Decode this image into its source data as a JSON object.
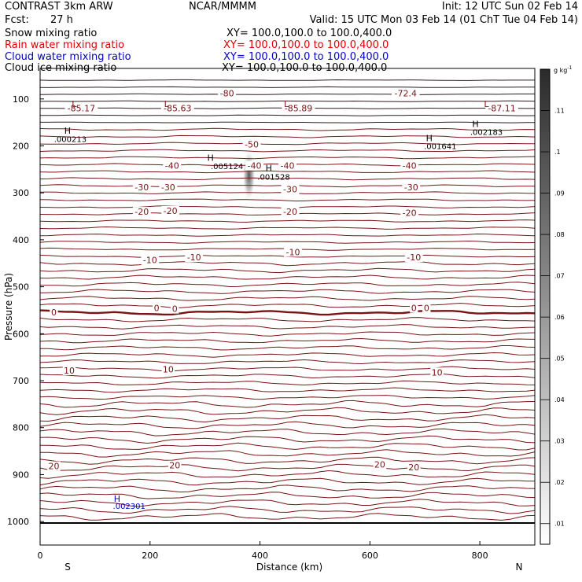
{
  "header": {
    "model": "CONTRAST  3km ARW",
    "org": "NCAR/MMMM",
    "init": "Init: 12 UTC Sun 02 Feb 14",
    "fcst_label": "Fcst:",
    "fcst_value": "27 h",
    "valid": "Valid: 15 UTC Mon 03 Feb 14 (01 ChT Tue 04 Feb 14)"
  },
  "fields": [
    {
      "name": "Snow mixing ratio",
      "xy": "XY= 100.0,100.0 to 100.0,400.0",
      "color": "#000000"
    },
    {
      "name": "Rain water mixing ratio",
      "xy": "XY= 100.0,100.0 to 100.0,400.0",
      "color": "#e00000"
    },
    {
      "name": "Cloud water mixing ratio",
      "xy": "XY= 100.0,100.0 to 100.0,400.0",
      "color": "#0000c8"
    },
    {
      "name": "Cloud ice mixing ratio",
      "xy": "XY= 100.0,100.0 to 100.0,400.0",
      "color": "#000000"
    }
  ],
  "colorbar": {
    "unit": "g kg",
    "unit_sup": "-1",
    "ticks": [
      ".01",
      ".02",
      ".03",
      ".04",
      ".05",
      ".06",
      ".07",
      ".08",
      ".09",
      ".1",
      ".11"
    ]
  },
  "chart_data": {
    "type": "contour cross-section",
    "xlabel": "Distance (km)",
    "ylabel": "Pressure (hPa)",
    "x_ticks": [
      0,
      200,
      400,
      600,
      800
    ],
    "y_ticks": [
      100,
      200,
      300,
      400,
      500,
      600,
      700,
      800,
      900,
      1000
    ],
    "xlim": [
      0,
      900
    ],
    "ylim": [
      1050,
      35
    ],
    "x_end_labels": {
      "left": "S",
      "right": "N"
    },
    "temperature_labels": [
      {
        "text": "-85.17",
        "x": 75,
        "p": 120
      },
      {
        "text": "-85.63",
        "x": 250,
        "p": 120
      },
      {
        "text": "-80",
        "x": 340,
        "p": 88
      },
      {
        "text": "-85.89",
        "x": 470,
        "p": 120
      },
      {
        "text": "-72.4",
        "x": 665,
        "p": 88
      },
      {
        "text": "-87.11",
        "x": 840,
        "p": 120
      },
      {
        "text": "-50",
        "x": 385,
        "p": 197
      },
      {
        "text": "-40",
        "x": 240,
        "p": 242
      },
      {
        "text": "-40",
        "x": 390,
        "p": 242
      },
      {
        "text": "-40",
        "x": 450,
        "p": 242
      },
      {
        "text": "-40",
        "x": 672,
        "p": 242
      },
      {
        "text": "-30",
        "x": 185,
        "p": 288
      },
      {
        "text": "-30",
        "x": 233,
        "p": 288
      },
      {
        "text": "-30",
        "x": 455,
        "p": 292
      },
      {
        "text": "-30",
        "x": 675,
        "p": 288
      },
      {
        "text": "-20",
        "x": 185,
        "p": 340
      },
      {
        "text": "-20",
        "x": 237,
        "p": 338
      },
      {
        "text": "-20",
        "x": 455,
        "p": 340
      },
      {
        "text": "-20",
        "x": 672,
        "p": 342
      },
      {
        "text": "-10",
        "x": 200,
        "p": 443
      },
      {
        "text": "-10",
        "x": 280,
        "p": 437
      },
      {
        "text": "-10",
        "x": 460,
        "p": 426
      },
      {
        "text": "-10",
        "x": 680,
        "p": 437
      },
      {
        "text": "0",
        "x": 25,
        "p": 554
      },
      {
        "text": "0",
        "x": 212,
        "p": 545
      },
      {
        "text": "0",
        "x": 245,
        "p": 547
      },
      {
        "text": "0",
        "x": 680,
        "p": 545
      },
      {
        "text": "0",
        "x": 703,
        "p": 545
      },
      {
        "text": "10",
        "x": 53,
        "p": 678
      },
      {
        "text": "10",
        "x": 233,
        "p": 676
      },
      {
        "text": "10",
        "x": 722,
        "p": 682
      },
      {
        "text": "20",
        "x": 25,
        "p": 882
      },
      {
        "text": "20",
        "x": 245,
        "p": 880
      },
      {
        "text": "20",
        "x": 618,
        "p": 878
      },
      {
        "text": "20",
        "x": 680,
        "p": 884
      }
    ],
    "pressure_centers": [
      {
        "text": "L",
        "x": 62,
        "p": 110,
        "color": "#8b1a1a"
      },
      {
        "text": "L",
        "x": 230,
        "p": 110,
        "color": "#8b1a1a"
      },
      {
        "text": "L",
        "x": 448,
        "p": 110,
        "color": "#8b1a1a"
      },
      {
        "text": "L",
        "x": 812,
        "p": 110,
        "color": "#8b1a1a"
      },
      {
        "text": "H",
        "x": 50,
        "p": 167,
        "color": "#000000"
      },
      {
        "text": "H",
        "x": 792,
        "p": 153,
        "color": "#000000"
      },
      {
        "text": "H",
        "x": 708,
        "p": 183,
        "color": "#000000"
      },
      {
        "text": "H",
        "x": 310,
        "p": 225,
        "color": "#000000"
      },
      {
        "text": "H",
        "x": 416,
        "p": 247,
        "color": "#000000"
      },
      {
        "text": "H",
        "x": 140,
        "p": 951,
        "color": "#0000c8"
      }
    ],
    "max_labels": [
      {
        "text": ".000213",
        "x": 55,
        "p": 185,
        "color": "#000000"
      },
      {
        "text": ".002183",
        "x": 812,
        "p": 170,
        "color": "#000000"
      },
      {
        "text": ".001641",
        "x": 728,
        "p": 200,
        "color": "#000000"
      },
      {
        "text": ".005124",
        "x": 340,
        "p": 243,
        "color": "#000000"
      },
      {
        "text": ".001528",
        "x": 425,
        "p": 265,
        "color": "#000000"
      },
      {
        "text": ".002301",
        "x": 162,
        "p": 966,
        "color": "#0000c8"
      }
    ],
    "snow_max": {
      "x": 380,
      "p_top": 210,
      "p_bottom": 315,
      "peak": 0.05
    }
  }
}
